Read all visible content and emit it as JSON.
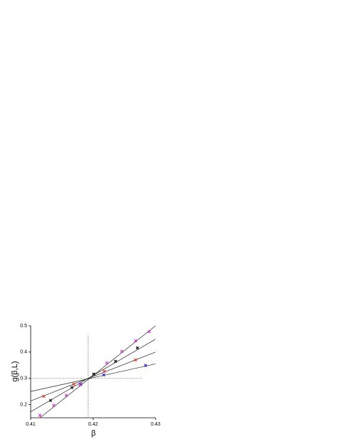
{
  "chart_data": {
    "type": "scatter",
    "xlabel": "β",
    "ylabel": "g(β,L)",
    "xlim": [
      0.41,
      0.43
    ],
    "ylim": [
      0.15,
      0.5
    ],
    "xticks": [
      0.41,
      0.42,
      0.43
    ],
    "yticks": [
      0.2,
      0.3,
      0.4,
      0.5
    ],
    "reference": {
      "x": 0.4192,
      "y": 0.3
    },
    "series": [
      {
        "color": "#2a2ad0",
        "x": [
          0.418,
          0.4217,
          0.4284
        ],
        "values": [
          0.278,
          0.313,
          0.349
        ],
        "fit": {
          "x": [
            0.41,
            0.43
          ],
          "values": [
            0.25,
            0.355
          ]
        }
      },
      {
        "color": "#e0402a",
        "x": [
          0.4121,
          0.4169,
          0.4218,
          0.4268
        ],
        "values": [
          0.232,
          0.278,
          0.327,
          0.37
        ],
        "fit": {
          "x": [
            0.41,
            0.43
          ],
          "values": [
            0.214,
            0.4
          ]
        }
      },
      {
        "color": "#111111",
        "x": [
          0.4132,
          0.4166,
          0.4201,
          0.4236,
          0.4271
        ],
        "values": [
          0.216,
          0.265,
          0.316,
          0.365,
          0.416
        ],
        "fit": {
          "x": [
            0.41,
            0.43
          ],
          "values": [
            0.173,
            0.449
          ]
        }
      },
      {
        "color": "#d040d8",
        "x": [
          0.4115,
          0.4137,
          0.4157,
          0.4179,
          0.4222,
          0.4246,
          0.4268,
          0.429
        ],
        "values": [
          0.159,
          0.197,
          0.235,
          0.276,
          0.359,
          0.403,
          0.443,
          0.478
        ],
        "fit": {
          "x": [
            0.4115,
            0.43
          ],
          "values": [
            0.15,
            0.5
          ]
        }
      }
    ]
  }
}
